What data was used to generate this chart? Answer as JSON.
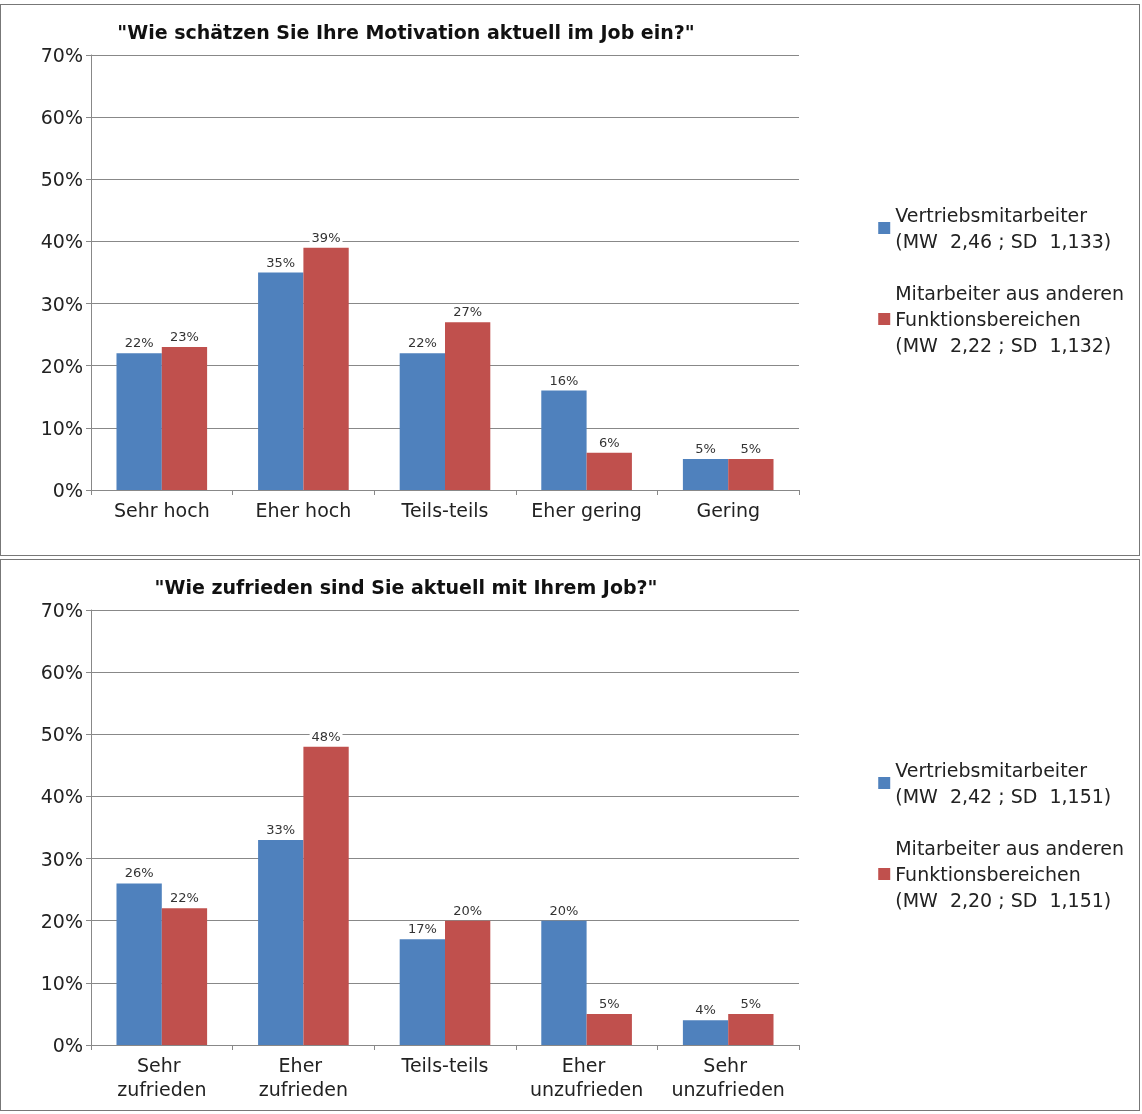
{
  "chart_data": [
    {
      "type": "bar",
      "title": "\"Wie schätzen Sie Ihre Motivation aktuell im Job ein?\"",
      "categories": [
        "Sehr hoch",
        "Eher hoch",
        "Teils-teils",
        "Eher gering",
        "Gering"
      ],
      "series": [
        {
          "name": "Vertriebsmitarbeiter\n(MW  2,46 ; SD  1,133)",
          "color": "#4f81bd",
          "values": [
            22,
            35,
            22,
            16,
            5
          ],
          "value_labels": [
            "22%",
            "35%",
            "22%",
            "16%",
            "5%"
          ]
        },
        {
          "name": "Mitarbeiter aus anderen\nFunktionsbereichen\n(MW  2,22 ; SD  1,132)",
          "color": "#c0504d",
          "values": [
            23,
            39,
            27,
            6,
            5
          ],
          "value_labels": [
            "23%",
            "39%",
            "27%",
            "6%",
            "5%"
          ]
        }
      ],
      "ylim": [
        0,
        70
      ],
      "yticks": [
        {
          "value": 0,
          "label": "0%"
        },
        {
          "value": 10,
          "label": "10%"
        },
        {
          "value": 20,
          "label": "20%"
        },
        {
          "value": 30,
          "label": "30%"
        },
        {
          "value": 40,
          "label": "40%"
        },
        {
          "value": 50,
          "label": "50%"
        },
        {
          "value": 60,
          "label": "60%"
        },
        {
          "value": 70,
          "label": "70%"
        }
      ],
      "grid": "y",
      "legend": "right"
    },
    {
      "type": "bar",
      "title": "\"Wie zufrieden sind Sie aktuell mit Ihrem Job?\"",
      "categories": [
        "Sehr zufrieden",
        "Eher zufrieden",
        "Teils-teils",
        "Eher unzufrieden",
        "Sehr unzufrieden"
      ],
      "series": [
        {
          "name": "Vertriebsmitarbeiter\n(MW  2,42 ; SD  1,151)",
          "color": "#4f81bd",
          "values": [
            26,
            33,
            17,
            20,
            4
          ],
          "value_labels": [
            "26%",
            "33%",
            "17%",
            "20%",
            "4%"
          ]
        },
        {
          "name": "Mitarbeiter aus anderen\nFunktionsbereichen\n(MW  2,20 ; SD  1,151)",
          "color": "#c0504d",
          "values": [
            22,
            48,
            20,
            5,
            5
          ],
          "value_labels": [
            "22%",
            "48%",
            "20%",
            "5%",
            "5%"
          ]
        }
      ],
      "ylim": [
        0,
        70
      ],
      "yticks": [
        {
          "value": 0,
          "label": "0%"
        },
        {
          "value": 10,
          "label": "10%"
        },
        {
          "value": 20,
          "label": "20%"
        },
        {
          "value": 30,
          "label": "30%"
        },
        {
          "value": 40,
          "label": "40%"
        },
        {
          "value": 50,
          "label": "50%"
        },
        {
          "value": 60,
          "label": "60%"
        },
        {
          "value": 70,
          "label": "70%"
        }
      ],
      "grid": "y",
      "legend": "right"
    }
  ]
}
